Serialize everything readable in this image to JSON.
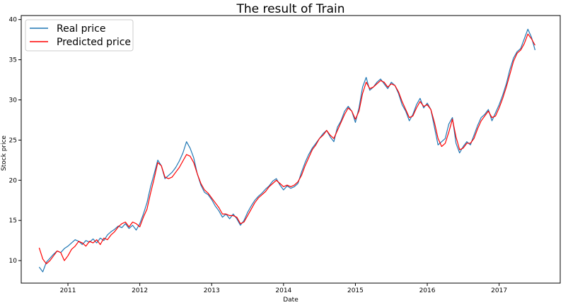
{
  "chart_data": {
    "type": "line",
    "title": "The result of Train",
    "xlabel": "Date",
    "ylabel": "Stock price",
    "xlim": [
      2010.35,
      2017.85
    ],
    "ylim": [
      7.2,
      40.5
    ],
    "x_ticks": [
      2011,
      2012,
      2013,
      2014,
      2015,
      2016,
      2017
    ],
    "x_tick_labels": [
      "2011",
      "2012",
      "2013",
      "2014",
      "2015",
      "2016",
      "2017"
    ],
    "y_ticks": [
      10,
      15,
      20,
      25,
      30,
      35,
      40
    ],
    "y_tick_labels": [
      "10",
      "15",
      "20",
      "25",
      "30",
      "35",
      "40"
    ],
    "grid": false,
    "legend_position": "top-left",
    "series": [
      {
        "name": "Real price",
        "color": "#1f77b4",
        "x": [
          2010.6,
          2010.65,
          2010.7,
          2010.75,
          2010.8,
          2010.85,
          2010.9,
          2010.95,
          2011.0,
          2011.05,
          2011.1,
          2011.15,
          2011.2,
          2011.25,
          2011.3,
          2011.35,
          2011.4,
          2011.45,
          2011.5,
          2011.55,
          2011.6,
          2011.65,
          2011.7,
          2011.75,
          2011.8,
          2011.85,
          2011.9,
          2011.95,
          2012.0,
          2012.05,
          2012.1,
          2012.15,
          2012.2,
          2012.25,
          2012.3,
          2012.35,
          2012.4,
          2012.45,
          2012.5,
          2012.55,
          2012.6,
          2012.65,
          2012.7,
          2012.75,
          2012.8,
          2012.85,
          2012.9,
          2012.95,
          2013.0,
          2013.05,
          2013.1,
          2013.15,
          2013.2,
          2013.25,
          2013.3,
          2013.35,
          2013.4,
          2013.45,
          2013.5,
          2013.55,
          2013.6,
          2013.65,
          2013.7,
          2013.75,
          2013.8,
          2013.85,
          2013.9,
          2013.95,
          2014.0,
          2014.05,
          2014.1,
          2014.15,
          2014.2,
          2014.25,
          2014.3,
          2014.35,
          2014.4,
          2014.45,
          2014.5,
          2014.55,
          2014.6,
          2014.65,
          2014.7,
          2014.75,
          2014.8,
          2014.85,
          2014.9,
          2014.95,
          2015.0,
          2015.05,
          2015.1,
          2015.15,
          2015.2,
          2015.25,
          2015.3,
          2015.35,
          2015.4,
          2015.45,
          2015.5,
          2015.55,
          2015.6,
          2015.65,
          2015.7,
          2015.75,
          2015.8,
          2015.85,
          2015.9,
          2015.95,
          2016.0,
          2016.05,
          2016.1,
          2016.15,
          2016.2,
          2016.25,
          2016.3,
          2016.35,
          2016.4,
          2016.45,
          2016.5,
          2016.55,
          2016.6,
          2016.65,
          2016.7,
          2016.75,
          2016.8,
          2016.85,
          2016.9,
          2016.95,
          2017.0,
          2017.05,
          2017.1,
          2017.15,
          2017.2,
          2017.25,
          2017.3,
          2017.35,
          2017.4,
          2017.45,
          2017.5
        ],
        "y": [
          9.2,
          8.6,
          9.8,
          10.3,
          10.8,
          11.2,
          11.0,
          11.5,
          11.8,
          12.2,
          12.6,
          12.4,
          12.0,
          12.5,
          12.3,
          12.7,
          12.2,
          12.8,
          12.5,
          13.2,
          13.6,
          13.9,
          14.3,
          14.1,
          14.6,
          14.0,
          14.4,
          13.8,
          14.6,
          15.8,
          17.2,
          19.2,
          20.8,
          22.5,
          21.8,
          20.2,
          20.6,
          21.0,
          21.6,
          22.4,
          23.4,
          24.8,
          24.0,
          22.8,
          20.8,
          19.4,
          18.5,
          18.2,
          17.6,
          16.8,
          16.2,
          15.4,
          15.8,
          15.2,
          15.8,
          15.2,
          14.4,
          15.0,
          16.0,
          16.8,
          17.5,
          18.0,
          18.4,
          18.9,
          19.3,
          19.9,
          20.2,
          19.4,
          18.8,
          19.3,
          19.0,
          19.2,
          19.6,
          21.0,
          22.2,
          23.2,
          24.0,
          24.6,
          25.2,
          25.8,
          26.2,
          25.4,
          24.8,
          26.6,
          27.4,
          28.6,
          29.2,
          28.6,
          27.2,
          29.0,
          31.6,
          32.8,
          31.2,
          31.6,
          32.2,
          32.6,
          32.0,
          31.4,
          32.2,
          31.8,
          30.8,
          29.4,
          28.6,
          27.4,
          28.2,
          29.4,
          30.2,
          29.0,
          29.6,
          28.8,
          26.6,
          24.4,
          24.8,
          25.2,
          27.0,
          27.8,
          24.6,
          23.4,
          24.2,
          24.8,
          24.4,
          25.6,
          26.8,
          27.8,
          28.2,
          28.8,
          27.4,
          28.4,
          29.4,
          30.6,
          32.0,
          33.8,
          35.2,
          36.0,
          36.4,
          37.6,
          38.8,
          37.8,
          36.2
        ]
      },
      {
        "name": "Predicted price",
        "color": "#ff0000",
        "x": [
          2010.6,
          2010.65,
          2010.7,
          2010.75,
          2010.8,
          2010.85,
          2010.9,
          2010.95,
          2011.0,
          2011.05,
          2011.1,
          2011.15,
          2011.2,
          2011.25,
          2011.3,
          2011.35,
          2011.4,
          2011.45,
          2011.5,
          2011.55,
          2011.6,
          2011.65,
          2011.7,
          2011.75,
          2011.8,
          2011.85,
          2011.9,
          2011.95,
          2012.0,
          2012.05,
          2012.1,
          2012.15,
          2012.2,
          2012.25,
          2012.3,
          2012.35,
          2012.4,
          2012.45,
          2012.5,
          2012.55,
          2012.6,
          2012.65,
          2012.7,
          2012.75,
          2012.8,
          2012.85,
          2012.9,
          2012.95,
          2013.0,
          2013.05,
          2013.1,
          2013.15,
          2013.2,
          2013.25,
          2013.3,
          2013.35,
          2013.4,
          2013.45,
          2013.5,
          2013.55,
          2013.6,
          2013.65,
          2013.7,
          2013.75,
          2013.8,
          2013.85,
          2013.9,
          2013.95,
          2014.0,
          2014.05,
          2014.1,
          2014.15,
          2014.2,
          2014.25,
          2014.3,
          2014.35,
          2014.4,
          2014.45,
          2014.5,
          2014.55,
          2014.6,
          2014.65,
          2014.7,
          2014.75,
          2014.8,
          2014.85,
          2014.9,
          2014.95,
          2015.0,
          2015.05,
          2015.1,
          2015.15,
          2015.2,
          2015.25,
          2015.3,
          2015.35,
          2015.4,
          2015.45,
          2015.5,
          2015.55,
          2015.6,
          2015.65,
          2015.7,
          2015.75,
          2015.8,
          2015.85,
          2015.9,
          2015.95,
          2016.0,
          2016.05,
          2016.1,
          2016.15,
          2016.2,
          2016.25,
          2016.3,
          2016.35,
          2016.4,
          2016.45,
          2016.5,
          2016.55,
          2016.6,
          2016.65,
          2016.7,
          2016.75,
          2016.8,
          2016.85,
          2016.9,
          2016.95,
          2017.0,
          2017.05,
          2017.1,
          2017.15,
          2017.2,
          2017.25,
          2017.3,
          2017.35,
          2017.4,
          2017.45,
          2017.5
        ],
        "y": [
          11.6,
          10.2,
          9.6,
          10.0,
          10.6,
          11.2,
          11.0,
          10.0,
          10.6,
          11.4,
          11.8,
          12.4,
          12.2,
          11.8,
          12.4,
          12.2,
          12.6,
          12.0,
          12.8,
          12.6,
          13.2,
          13.6,
          14.2,
          14.6,
          14.8,
          14.2,
          14.8,
          14.6,
          14.2,
          15.4,
          16.4,
          18.4,
          20.2,
          22.2,
          21.8,
          20.4,
          20.2,
          20.4,
          21.0,
          21.6,
          22.4,
          23.2,
          23.0,
          22.2,
          20.8,
          19.6,
          18.8,
          18.4,
          17.8,
          17.2,
          16.6,
          15.8,
          15.8,
          15.6,
          15.6,
          15.4,
          14.6,
          14.8,
          15.6,
          16.4,
          17.2,
          17.8,
          18.2,
          18.6,
          19.2,
          19.6,
          20.0,
          19.6,
          19.2,
          19.4,
          19.2,
          19.4,
          19.8,
          20.6,
          21.8,
          22.8,
          23.8,
          24.4,
          25.2,
          25.6,
          26.2,
          25.6,
          25.2,
          26.2,
          27.2,
          28.2,
          29.0,
          28.6,
          27.6,
          28.6,
          30.8,
          32.2,
          31.4,
          31.6,
          32.0,
          32.4,
          32.2,
          31.6,
          32.0,
          31.8,
          31.0,
          29.8,
          28.8,
          27.8,
          28.0,
          29.0,
          29.8,
          29.2,
          29.4,
          28.8,
          27.2,
          25.2,
          24.2,
          24.6,
          26.0,
          27.6,
          25.4,
          23.8,
          24.0,
          24.6,
          24.6,
          25.2,
          26.4,
          27.4,
          28.0,
          28.6,
          27.8,
          28.0,
          29.0,
          30.2,
          31.6,
          33.2,
          34.8,
          35.8,
          36.2,
          37.0,
          38.2,
          37.6,
          36.8
        ]
      }
    ]
  }
}
